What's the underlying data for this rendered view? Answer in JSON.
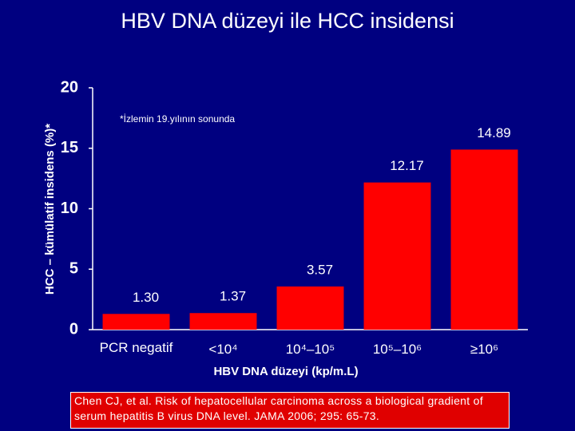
{
  "chart_data": {
    "type": "bar",
    "title": "HBV DNA düzeyi ile HCC insidensi",
    "ylabel": "HCC – kümülatif insidens (%)*",
    "annotation": "*İzlemin 19.yılının sonunda",
    "xlabel": "HBV DNA düzeyi (kp/m.L)",
    "source": "Chen CJ, et al. Risk of hepatocellular carcinoma across a biological gradient of serum hepatitis B virus DNA level. JAMA 2006; 295: 65-73.",
    "categories": [
      "PCR negatif",
      "<10⁴",
      "10⁴–10⁵",
      "10⁵–10⁶",
      "≥10⁶"
    ],
    "values": [
      1.3,
      1.37,
      3.57,
      12.17,
      14.89
    ],
    "value_labels": [
      "1.30",
      "1.37",
      "3.57",
      "12.17",
      "14.89"
    ],
    "color": "#ff0000",
    "ylim": [
      0,
      20
    ],
    "yticks": [
      0,
      5,
      10,
      15,
      20
    ],
    "grid": false
  }
}
